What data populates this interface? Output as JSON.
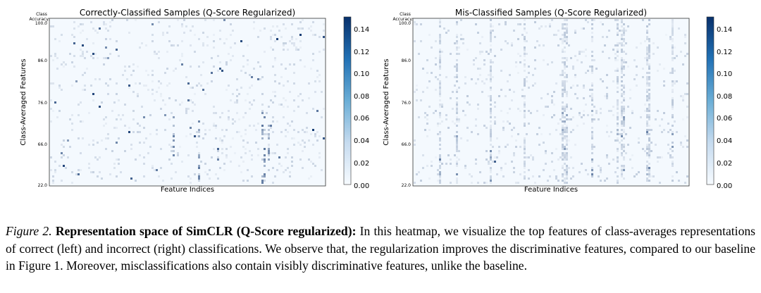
{
  "figure": {
    "colormap": [
      "#f7fbff",
      "#08306b"
    ],
    "panels": [
      {
        "title": "Correctly-Classified Samples (Q-Score Regularized)",
        "xlabel": "Feature Indices",
        "ylabel": "Class-Averaged Features",
        "corner_label": [
          "Class",
          "Accuracy:"
        ],
        "yticks": [
          "100.0",
          "86.0",
          "76.0",
          "66.0",
          "22.0"
        ],
        "colorbar_ticks": [
          "0.14",
          "0.12",
          "0.10",
          "0.08",
          "0.06",
          "0.04",
          "0.02",
          "0.00"
        ]
      },
      {
        "title": "Mis-Classified Samples (Q-Score Regularized)",
        "xlabel": "Feature Indices",
        "ylabel": "Class-Averaged Features",
        "corner_label": [
          "Class",
          "Accuracy:"
        ],
        "yticks": [
          "100.0",
          "86.0",
          "76.0",
          "66.0",
          "22.0"
        ],
        "colorbar_ticks": [
          "0.14",
          "0.12",
          "0.10",
          "0.08",
          "0.06",
          "0.04",
          "0.02",
          "0.00"
        ]
      }
    ]
  },
  "chart_data": [
    {
      "type": "heatmap",
      "title": "Correctly-Classified Samples (Q-Score Regularized)",
      "xlabel": "Feature Indices",
      "ylabel": "Class-Averaged Features",
      "ytick_labels": [
        "100.0",
        "86.0",
        "76.0",
        "66.0",
        "22.0"
      ],
      "colorbar_range": [
        0.0,
        0.15
      ],
      "colorbar_ticks": [
        0.0,
        0.02,
        0.04,
        0.06,
        0.08,
        0.1,
        0.12,
        0.14
      ],
      "pattern": "sparse high-value features scattered across classes"
    },
    {
      "type": "heatmap",
      "title": "Mis-Classified Samples (Q-Score Regularized)",
      "xlabel": "Feature Indices",
      "ylabel": "Class-Averaged Features",
      "ytick_labels": [
        "100.0",
        "86.0",
        "76.0",
        "66.0",
        "22.0"
      ],
      "colorbar_range": [
        0.0,
        0.15
      ],
      "colorbar_ticks": [
        0.0,
        0.02,
        0.04,
        0.06,
        0.08,
        0.1,
        0.12,
        0.14
      ],
      "pattern": "mostly low values with faint vertical feature stripes"
    }
  ],
  "caption": {
    "label": "Figure 2.",
    "heading": "Representation space of SimCLR (Q-Score regularized):",
    "text": "In this heatmap, we visualize the top features of class-averages representations of correct (left) and incorrect (right) classifications. We observe that, the regularization improves the discriminative features, compared to our baseline in Figure 1. Moreover, misclassifications also contain visibly discriminative features, unlike the baseline."
  }
}
